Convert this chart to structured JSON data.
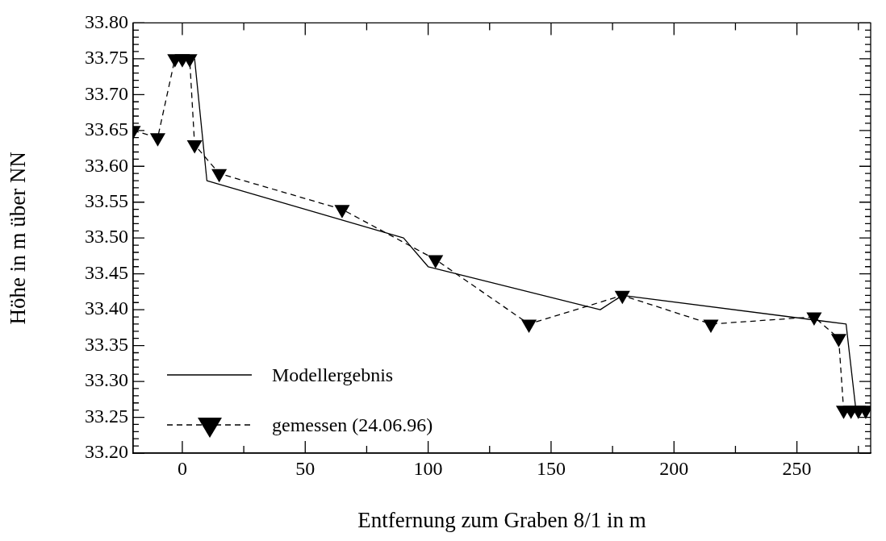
{
  "chart_data": {
    "type": "line",
    "xlabel": "Entfernung zum Graben 8/1 in m",
    "ylabel": "Höhe in m über NN",
    "xlim": [
      -20,
      280
    ],
    "ylim": [
      33.2,
      33.8
    ],
    "xticks": [
      0,
      {
        "value": 25,
        "label": null
      },
      50,
      {
        "value": 75,
        "label": null
      },
      100,
      {
        "value": 125,
        "label": null
      },
      150,
      {
        "value": 175,
        "label": null
      },
      200,
      {
        "value": 225,
        "label": null
      },
      250,
      {
        "value": 275,
        "label": null
      }
    ],
    "yticks": [
      {
        "value": 33.2,
        "label": "33.20"
      },
      {
        "value": 33.21,
        "label": null
      },
      {
        "value": 33.22,
        "label": null
      },
      {
        "value": 33.23,
        "label": null
      },
      {
        "value": 33.24,
        "label": null
      },
      {
        "value": 33.25,
        "label": "33.25"
      },
      {
        "value": 33.26,
        "label": null
      },
      {
        "value": 33.27,
        "label": null
      },
      {
        "value": 33.28,
        "label": null
      },
      {
        "value": 33.29,
        "label": null
      },
      {
        "value": 33.3,
        "label": "33.30"
      },
      {
        "value": 33.31,
        "label": null
      },
      {
        "value": 33.32,
        "label": null
      },
      {
        "value": 33.33,
        "label": null
      },
      {
        "value": 33.34,
        "label": null
      },
      {
        "value": 33.35,
        "label": "33.35"
      },
      {
        "value": 33.36,
        "label": null
      },
      {
        "value": 33.37,
        "label": null
      },
      {
        "value": 33.38,
        "label": null
      },
      {
        "value": 33.39,
        "label": null
      },
      {
        "value": 33.4,
        "label": "33.40"
      },
      {
        "value": 33.41,
        "label": null
      },
      {
        "value": 33.42,
        "label": null
      },
      {
        "value": 33.43,
        "label": null
      },
      {
        "value": 33.44,
        "label": null
      },
      {
        "value": 33.45,
        "label": "33.45"
      },
      {
        "value": 33.46,
        "label": null
      },
      {
        "value": 33.47,
        "label": null
      },
      {
        "value": 33.48,
        "label": null
      },
      {
        "value": 33.49,
        "label": null
      },
      {
        "value": 33.5,
        "label": "33.50"
      },
      {
        "value": 33.51,
        "label": null
      },
      {
        "value": 33.52,
        "label": null
      },
      {
        "value": 33.53,
        "label": null
      },
      {
        "value": 33.54,
        "label": null
      },
      {
        "value": 33.55,
        "label": "33.55"
      },
      {
        "value": 33.56,
        "label": null
      },
      {
        "value": 33.57,
        "label": null
      },
      {
        "value": 33.58,
        "label": null
      },
      {
        "value": 33.59,
        "label": null
      },
      {
        "value": 33.6,
        "label": "33.60"
      },
      {
        "value": 33.61,
        "label": null
      },
      {
        "value": 33.62,
        "label": null
      },
      {
        "value": 33.63,
        "label": null
      },
      {
        "value": 33.64,
        "label": null
      },
      {
        "value": 33.65,
        "label": "33.65"
      },
      {
        "value": 33.66,
        "label": null
      },
      {
        "value": 33.67,
        "label": null
      },
      {
        "value": 33.68,
        "label": null
      },
      {
        "value": 33.69,
        "label": null
      },
      {
        "value": 33.7,
        "label": "33.70"
      },
      {
        "value": 33.71,
        "label": null
      },
      {
        "value": 33.72,
        "label": null
      },
      {
        "value": 33.73,
        "label": null
      },
      {
        "value": 33.74,
        "label": null
      },
      {
        "value": 33.75,
        "label": "33.75"
      },
      {
        "value": 33.76,
        "label": null
      },
      {
        "value": 33.77,
        "label": null
      },
      {
        "value": 33.78,
        "label": null
      },
      {
        "value": 33.79,
        "label": null
      },
      {
        "value": 33.8,
        "label": "33.80"
      }
    ],
    "grid": false,
    "legend": "bottom left",
    "series": [
      {
        "name": "Modellergebnis",
        "color": "#000000",
        "line_style": "solid",
        "marker": "none",
        "x": [
          5,
          10,
          90,
          100,
          170,
          179,
          270,
          274
        ],
        "values": [
          33.75,
          33.58,
          33.5,
          33.46,
          33.4,
          33.42,
          33.38,
          33.26
        ]
      },
      {
        "name": "gemessen (24.06.96)",
        "color": "#000000",
        "line_style": "dashed",
        "marker": "triangle",
        "x": [
          -20,
          -10,
          -3,
          0,
          3,
          5,
          15,
          65,
          103,
          141,
          179,
          215,
          257,
          267,
          269,
          272,
          275,
          278
        ],
        "values": [
          33.65,
          33.64,
          33.75,
          33.75,
          33.75,
          33.63,
          33.59,
          33.54,
          33.47,
          33.38,
          33.42,
          33.38,
          33.39,
          33.36,
          33.26,
          33.26,
          33.26,
          33.26
        ]
      }
    ]
  }
}
